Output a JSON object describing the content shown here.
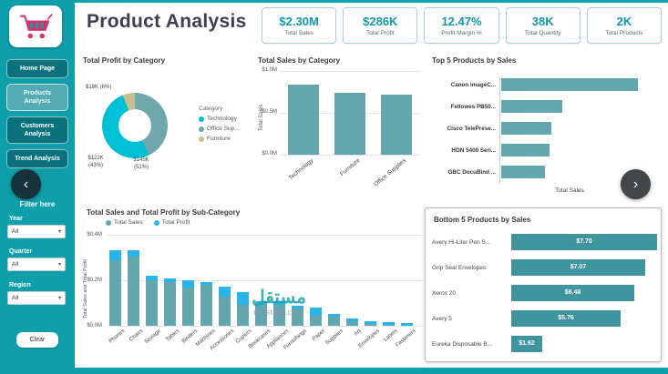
{
  "app": {
    "watermark_main": "مستقل",
    "watermark_sub": "mostaql.com"
  },
  "icons": {
    "chevron_left": "‹",
    "chevron_right": "›",
    "chevron_down": "▾"
  },
  "sidebar": {
    "nav": [
      {
        "label": "Home Page"
      },
      {
        "label": "Products\nAnalysis"
      },
      {
        "label": "Customers\nAnalysis"
      },
      {
        "label": "Trend Analysis"
      }
    ],
    "filter_header": "Filter here",
    "filters": [
      {
        "label": "Year",
        "value": "All"
      },
      {
        "label": "Quarter",
        "value": "All"
      },
      {
        "label": "Region",
        "value": "All"
      }
    ],
    "clear_label": "Clear"
  },
  "header": {
    "title": "Product Analysis",
    "kpis": [
      {
        "value": "$2.30M",
        "label": "Total Sales"
      },
      {
        "value": "$286K",
        "label": "Total Profit"
      },
      {
        "value": "12.47%",
        "label": "Profit Margin %"
      },
      {
        "value": "38K",
        "label": "Total Quantity"
      },
      {
        "value": "2K",
        "label": "Total Products"
      }
    ]
  },
  "chart_data": [
    {
      "type": "pie",
      "title": "Total Profit by Category",
      "legend_title": "Category",
      "slices": [
        {
          "label": "Technology",
          "pct": 51,
          "display": "$145K (51%)",
          "color": "#00c0d6"
        },
        {
          "label": "Office Sup...",
          "pct": 43,
          "display": "$122K (43%)",
          "color": "#6fa7ad"
        },
        {
          "label": "Furniture",
          "pct": 6,
          "display": "$18K (6%)",
          "color": "#c9bc8d"
        }
      ],
      "callouts": [
        {
          "text": "$18K (6%)"
        },
        {
          "text": "$122K\n(43%)"
        },
        {
          "text": "$145K\n(51%)"
        }
      ]
    },
    {
      "type": "bar",
      "title": "Total Sales by Category",
      "categories": [
        "Technology",
        "Furniture",
        "Office Supplies"
      ],
      "values": [
        0.84,
        0.74,
        0.72
      ],
      "ylabel": "Total Sales",
      "yticks": [
        "$1.0M",
        "$0.5M",
        "$0.0M"
      ],
      "ylim": [
        0,
        1.0
      ],
      "bar_color": "#63a6ae"
    },
    {
      "type": "bar",
      "orientation": "horizontal",
      "title": "Top 5 Products by Sales",
      "categories": [
        "Canon imageC...",
        "Fellowes PB50...",
        "Cisco TelePrese...",
        "HON 5400 Seri...",
        "GBC DocuBind ..."
      ],
      "values": [
        61.6,
        27.4,
        22.6,
        21.9,
        19.8
      ],
      "xlabel": "Total Sales",
      "bar_color": "#63a6ae"
    },
    {
      "type": "bar",
      "title": "Total Sales and Total Profit by Sub-Category",
      "categories": [
        "Phones",
        "Chairs",
        "Storage",
        "Tables",
        "Binders",
        "Machines",
        "Accessories",
        "Copiers",
        "Bookcases",
        "Appliances",
        "Furnishings",
        "Paper",
        "Supplies",
        "Art",
        "Envelopes",
        "Labels",
        "Fasteners"
      ],
      "series": [
        {
          "name": "Total Sales",
          "color": "#63a6ae",
          "values": [
            0.33,
            0.33,
            0.22,
            0.21,
            0.2,
            0.19,
            0.17,
            0.15,
            0.11,
            0.11,
            0.09,
            0.08,
            0.05,
            0.03,
            0.02,
            0.015,
            0.008
          ]
        },
        {
          "name": "Total Profit",
          "color": "#28b4e8",
          "values": [
            0.044,
            0.027,
            0.021,
            0.018,
            0.03,
            0.004,
            0.042,
            0.056,
            0.004,
            0.018,
            0.013,
            0.034,
            0.002,
            0.007,
            0.007,
            0.006,
            0.002
          ]
        }
      ],
      "ylabel": "Total Sales and Total Profit",
      "yticks": [
        "$0.4M",
        "$0.2M",
        "$0.0M"
      ],
      "ylim": [
        0,
        0.4
      ]
    },
    {
      "type": "bar",
      "orientation": "horizontal",
      "title": "Bottom 5 Products by Sales",
      "items": [
        {
          "label": "Avery Hi-Liter Pen S...",
          "value": "$7.70",
          "num": 7.7
        },
        {
          "label": "Grip Seal Envelopes",
          "value": "$7.07",
          "num": 7.07
        },
        {
          "label": "Xerox 20",
          "value": "$6.48",
          "num": 6.48
        },
        {
          "label": "Avery 5",
          "value": "$5.76",
          "num": 5.76
        },
        {
          "label": "Eureka Disposable B...",
          "value": "$1.62",
          "num": 1.62
        }
      ],
      "bar_color": "#3e959e"
    }
  ]
}
